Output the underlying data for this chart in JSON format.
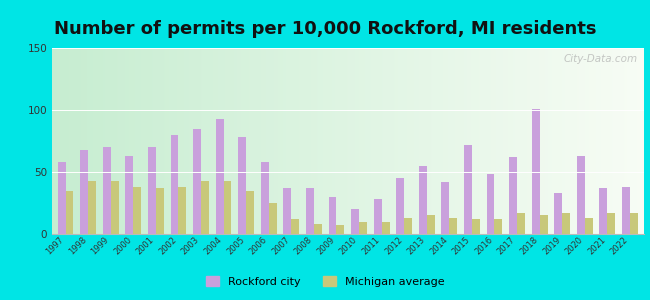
{
  "title": "Number of permits per 10,000 Rockford, MI residents",
  "years": [
    1997,
    1998,
    1999,
    2000,
    2001,
    2002,
    2003,
    2004,
    2005,
    2006,
    2007,
    2008,
    2009,
    2010,
    2011,
    2012,
    2013,
    2014,
    2015,
    2016,
    2017,
    2018,
    2019,
    2020,
    2021,
    2022
  ],
  "rockford": [
    58,
    68,
    70,
    63,
    70,
    80,
    85,
    93,
    78,
    58,
    37,
    37,
    30,
    20,
    28,
    45,
    55,
    42,
    72,
    48,
    62,
    101,
    33,
    63,
    37,
    38
  ],
  "michigan": [
    35,
    43,
    43,
    38,
    37,
    38,
    43,
    43,
    35,
    25,
    12,
    8,
    7,
    10,
    10,
    13,
    15,
    13,
    12,
    12,
    17,
    15,
    17,
    13,
    17,
    17
  ],
  "rockford_color": "#c9a0dc",
  "michigan_color": "#c8c87a",
  "background_outer": "#00e5e5",
  "ylim": [
    0,
    150
  ],
  "yticks": [
    0,
    50,
    100,
    150
  ],
  "title_fontsize": 13,
  "legend_rockford": "Rockford city",
  "legend_michigan": "Michigan average",
  "watermark": "City-Data.com"
}
